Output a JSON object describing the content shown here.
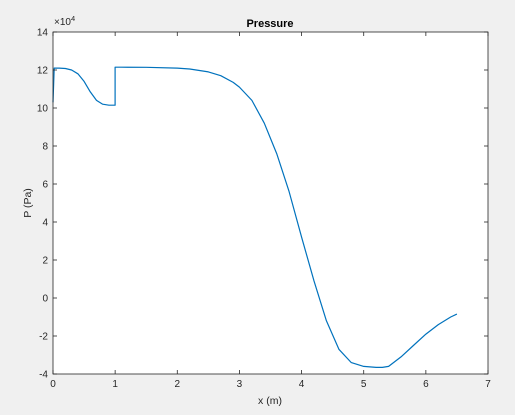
{
  "chart_data": {
    "type": "line",
    "title": "Pressure",
    "xlabel": "x (m)",
    "ylabel": "P (Pa)",
    "exponent_label": "×10",
    "exponent_power": "4",
    "xlim": [
      0,
      7
    ],
    "ylim": [
      -4,
      14
    ],
    "x_ticks": [
      "0",
      "1",
      "2",
      "3",
      "4",
      "5",
      "6",
      "7"
    ],
    "y_ticks": [
      "-4",
      "-2",
      "0",
      "2",
      "4",
      "6",
      "8",
      "10",
      "12",
      "14"
    ],
    "grid": false,
    "series": [
      {
        "color": "#0072BD",
        "x": [
          0,
          0.02,
          0.1,
          0.2,
          0.3,
          0.4,
          0.5,
          0.6,
          0.7,
          0.8,
          0.9,
          0.95,
          1.0,
          1.0,
          1.1,
          1.5,
          2.0,
          2.2,
          2.5,
          2.7,
          2.9,
          3.0,
          3.2,
          3.4,
          3.6,
          3.8,
          4.0,
          4.2,
          4.4,
          4.6,
          4.8,
          5.0,
          5.2,
          5.3,
          5.4,
          5.6,
          5.8,
          6.0,
          6.2,
          6.4,
          6.5
        ],
        "y": [
          10.3,
          12.1,
          12.1,
          12.08,
          12.0,
          11.8,
          11.4,
          10.85,
          10.4,
          10.2,
          10.15,
          10.15,
          10.15,
          12.15,
          12.15,
          12.14,
          12.1,
          12.05,
          11.9,
          11.7,
          11.35,
          11.1,
          10.4,
          9.2,
          7.6,
          5.6,
          3.2,
          0.9,
          -1.2,
          -2.7,
          -3.4,
          -3.6,
          -3.65,
          -3.65,
          -3.6,
          -3.1,
          -2.5,
          -1.9,
          -1.4,
          -1.0,
          -0.85
        ]
      }
    ]
  }
}
